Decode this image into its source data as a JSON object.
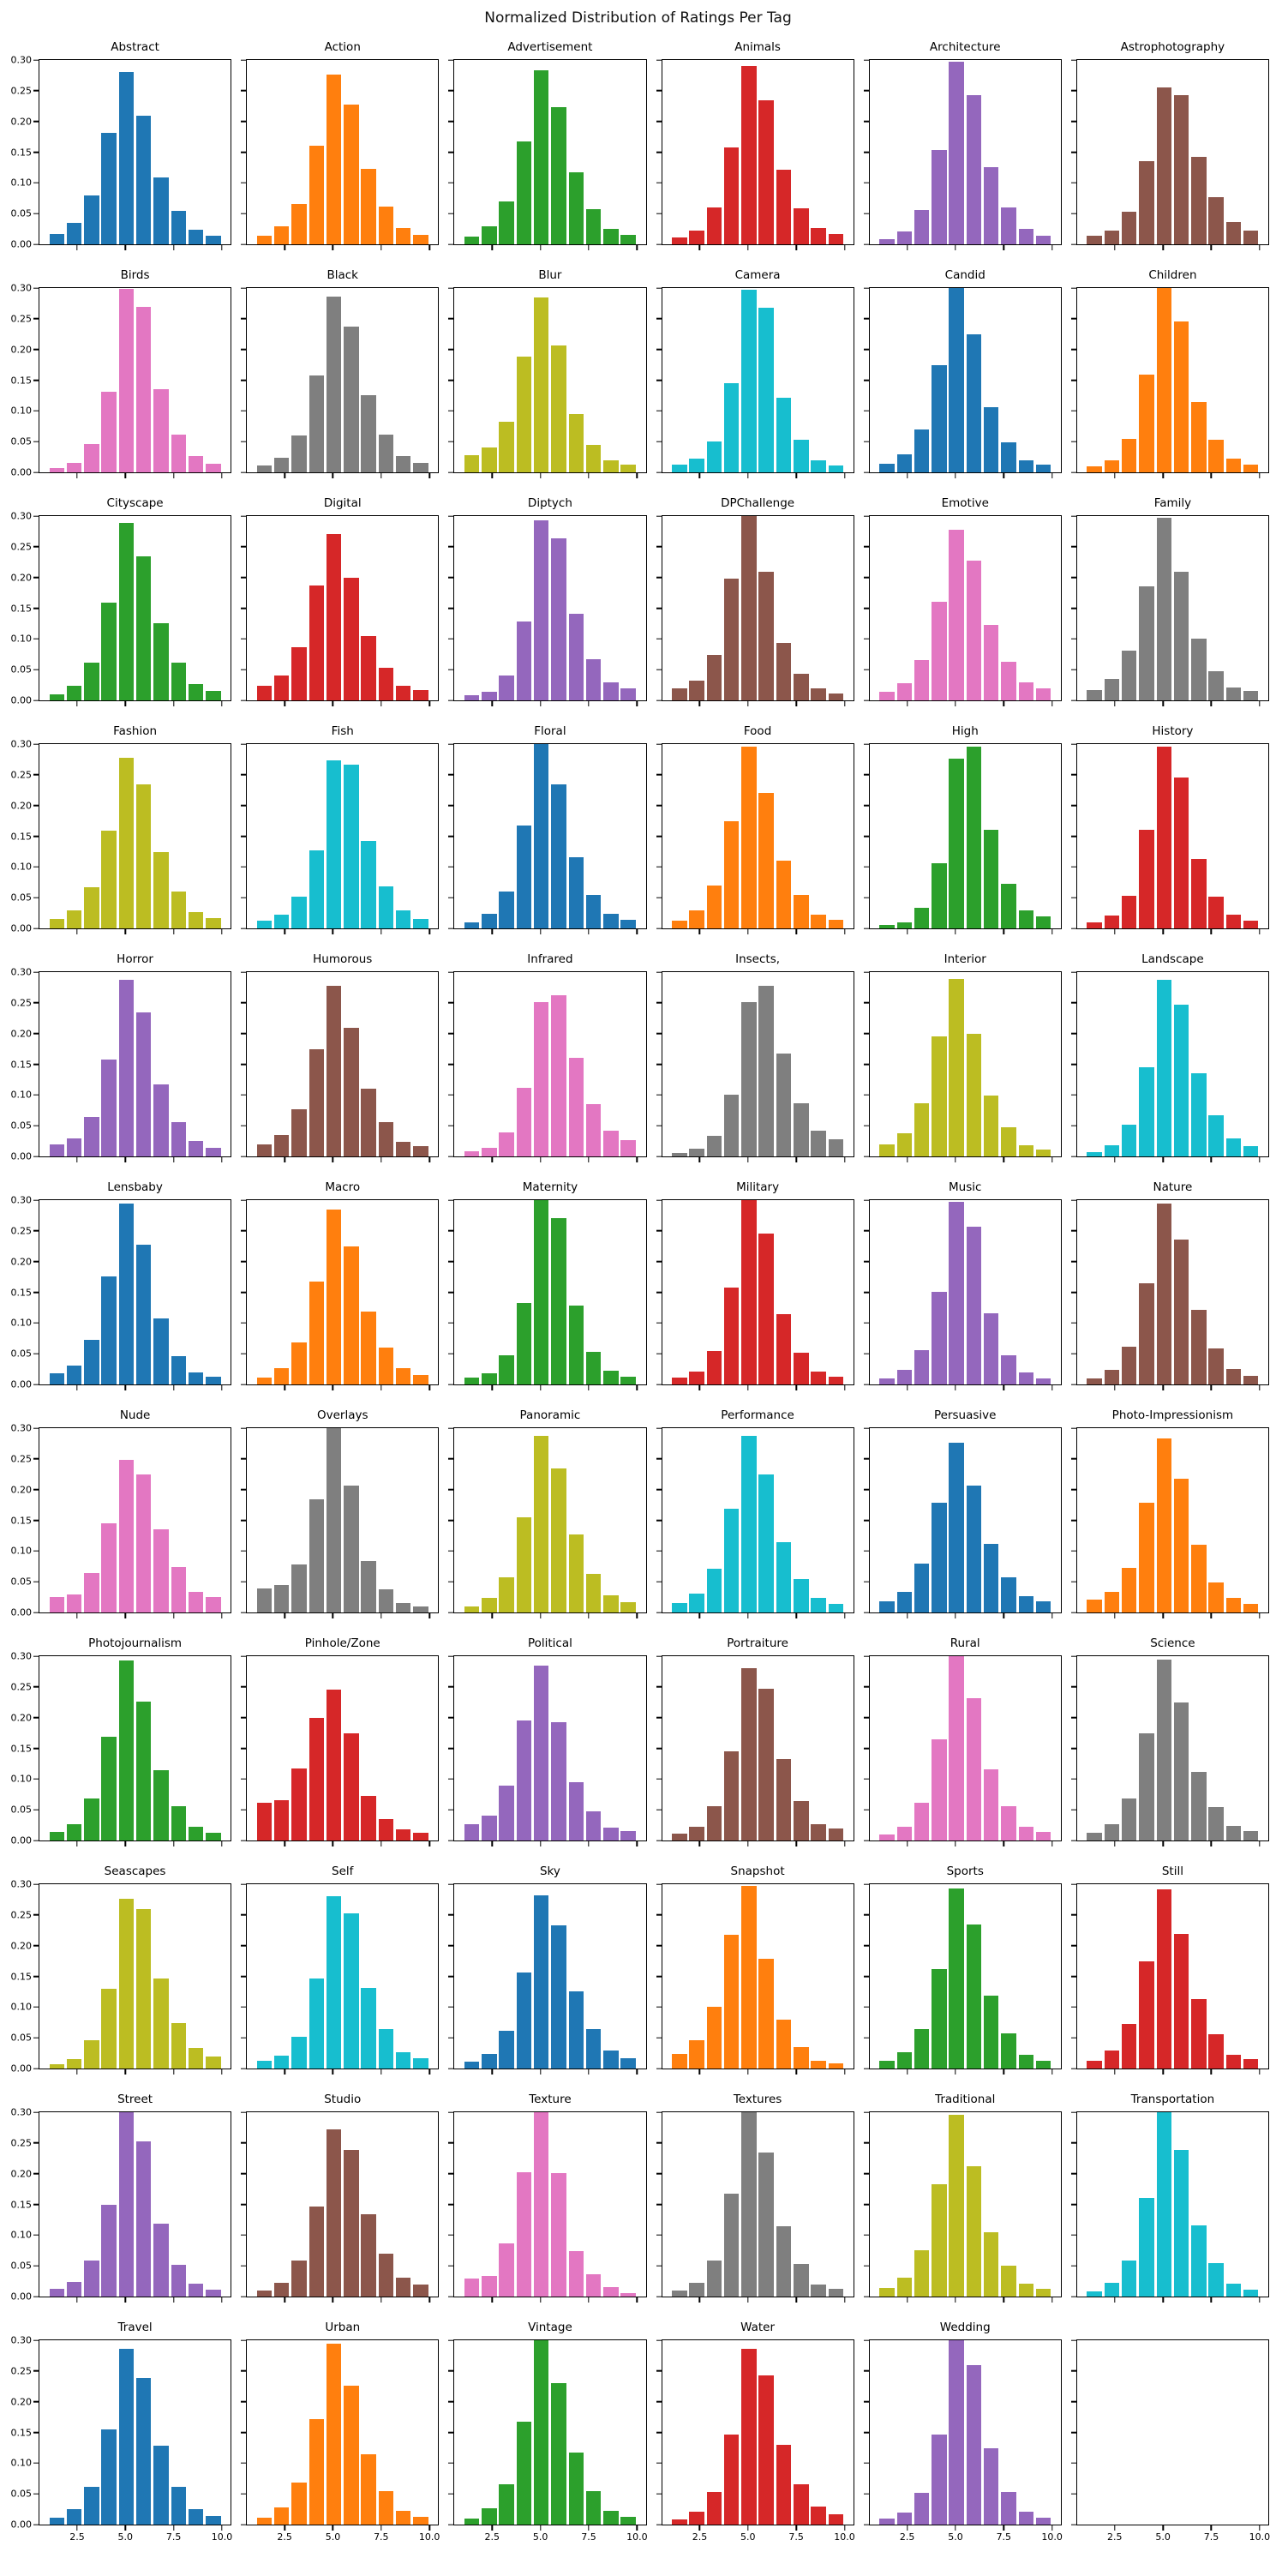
{
  "figure": {
    "title": "Normalized Distribution of Ratings Per Tag"
  },
  "chart_data": {
    "type": "bar",
    "title": "Normalized Distribution of Ratings Per Tag",
    "xlabel": "",
    "ylabel": "",
    "layout": {
      "rows": 11,
      "cols": 6,
      "ylim": [
        0,
        0.3
      ],
      "xlim": [
        0.55,
        10.45
      ],
      "bin_start": 1.0,
      "bin_width": 0.9,
      "bins": 10,
      "grid": false,
      "shared_axes": true,
      "empty_last_cell": true
    },
    "yticks": {
      "values": [
        0.0,
        0.05,
        0.1,
        0.15,
        0.2,
        0.25,
        0.3
      ],
      "labels": [
        "0.00",
        "0.05",
        "0.10",
        "0.15",
        "0.20",
        "0.25",
        "0.30"
      ]
    },
    "xticks": {
      "values": [
        2.5,
        5.0,
        7.5,
        10.0
      ],
      "labels": [
        "2.5",
        "5.0",
        "7.5",
        "10.0"
      ]
    },
    "palette": [
      "#1f77b4",
      "#ff7f0e",
      "#2ca02c",
      "#d62728",
      "#9467bd",
      "#8c564b",
      "#e377c2",
      "#7f7f7f",
      "#bcbd22",
      "#17becf"
    ],
    "subplots": [
      {
        "tag": "Abstract",
        "color": "#1f77b4",
        "values": [
          0.017,
          0.035,
          0.08,
          0.181,
          0.281,
          0.21,
          0.109,
          0.055,
          0.024,
          0.014
        ]
      },
      {
        "tag": "Action",
        "color": "#ff7f0e",
        "values": [
          0.014,
          0.029,
          0.066,
          0.161,
          0.276,
          0.228,
          0.123,
          0.062,
          0.027,
          0.016
        ]
      },
      {
        "tag": "Advertisement",
        "color": "#2ca02c",
        "values": [
          0.013,
          0.029,
          0.07,
          0.168,
          0.283,
          0.223,
          0.117,
          0.057,
          0.025,
          0.016
        ]
      },
      {
        "tag": "Animals",
        "color": "#d62728",
        "values": [
          0.011,
          0.023,
          0.06,
          0.158,
          0.29,
          0.235,
          0.122,
          0.059,
          0.026,
          0.017
        ]
      },
      {
        "tag": "Architecture",
        "color": "#9467bd",
        "values": [
          0.008,
          0.021,
          0.056,
          0.154,
          0.297,
          0.243,
          0.126,
          0.06,
          0.025,
          0.014
        ]
      },
      {
        "tag": "Astrophotography",
        "color": "#8c564b",
        "values": [
          0.014,
          0.023,
          0.053,
          0.136,
          0.256,
          0.243,
          0.143,
          0.077,
          0.036,
          0.023
        ]
      },
      {
        "tag": "Birds",
        "color": "#e377c2",
        "values": [
          0.007,
          0.016,
          0.046,
          0.131,
          0.298,
          0.27,
          0.135,
          0.061,
          0.026,
          0.014
        ]
      },
      {
        "tag": "Black",
        "color": "#7f7f7f",
        "values": [
          0.011,
          0.024,
          0.06,
          0.157,
          0.286,
          0.237,
          0.125,
          0.061,
          0.026,
          0.015
        ]
      },
      {
        "tag": "Blur",
        "color": "#bcbd22",
        "values": [
          0.028,
          0.041,
          0.082,
          0.188,
          0.285,
          0.207,
          0.095,
          0.045,
          0.02,
          0.012
        ]
      },
      {
        "tag": "Camera",
        "color": "#17becf",
        "values": [
          0.013,
          0.023,
          0.05,
          0.145,
          0.297,
          0.268,
          0.122,
          0.053,
          0.019,
          0.011
        ]
      },
      {
        "tag": "Candid",
        "color": "#1f77b4",
        "values": [
          0.014,
          0.029,
          0.07,
          0.175,
          0.3,
          0.225,
          0.106,
          0.049,
          0.019,
          0.012
        ]
      },
      {
        "tag": "Children",
        "color": "#ff7f0e",
        "values": [
          0.01,
          0.02,
          0.054,
          0.159,
          0.3,
          0.246,
          0.115,
          0.053,
          0.022,
          0.012
        ]
      },
      {
        "tag": "Cityscape",
        "color": "#2ca02c",
        "values": [
          0.01,
          0.024,
          0.062,
          0.159,
          0.289,
          0.235,
          0.125,
          0.062,
          0.027,
          0.015
        ]
      },
      {
        "tag": "Digital",
        "color": "#d62728",
        "values": [
          0.024,
          0.04,
          0.086,
          0.187,
          0.271,
          0.2,
          0.104,
          0.053,
          0.024,
          0.017
        ]
      },
      {
        "tag": "Diptych",
        "color": "#9467bd",
        "values": [
          0.008,
          0.014,
          0.04,
          0.128,
          0.293,
          0.264,
          0.141,
          0.067,
          0.029,
          0.02
        ]
      },
      {
        "tag": "DPChallenge",
        "color": "#8c564b",
        "values": [
          0.019,
          0.032,
          0.074,
          0.198,
          0.3,
          0.209,
          0.094,
          0.043,
          0.019,
          0.011
        ]
      },
      {
        "tag": "Emotive",
        "color": "#e377c2",
        "values": [
          0.014,
          0.028,
          0.066,
          0.161,
          0.278,
          0.227,
          0.123,
          0.063,
          0.03,
          0.02
        ]
      },
      {
        "tag": "Family",
        "color": "#7f7f7f",
        "values": [
          0.017,
          0.035,
          0.081,
          0.186,
          0.297,
          0.21,
          0.101,
          0.048,
          0.021,
          0.015
        ]
      },
      {
        "tag": "Fashion",
        "color": "#bcbd22",
        "values": [
          0.015,
          0.029,
          0.067,
          0.159,
          0.277,
          0.234,
          0.124,
          0.06,
          0.026,
          0.017
        ]
      },
      {
        "tag": "Fish",
        "color": "#17becf",
        "values": [
          0.013,
          0.022,
          0.052,
          0.127,
          0.273,
          0.266,
          0.143,
          0.068,
          0.029,
          0.016
        ]
      },
      {
        "tag": "Floral",
        "color": "#1f77b4",
        "values": [
          0.01,
          0.024,
          0.06,
          0.168,
          0.3,
          0.235,
          0.116,
          0.054,
          0.024,
          0.014
        ]
      },
      {
        "tag": "Food",
        "color": "#ff7f0e",
        "values": [
          0.012,
          0.029,
          0.07,
          0.175,
          0.296,
          0.221,
          0.11,
          0.054,
          0.023,
          0.014
        ]
      },
      {
        "tag": "High",
        "color": "#2ca02c",
        "values": [
          0.005,
          0.01,
          0.033,
          0.106,
          0.276,
          0.296,
          0.16,
          0.072,
          0.03,
          0.019
        ]
      },
      {
        "tag": "History",
        "color": "#d62728",
        "values": [
          0.01,
          0.021,
          0.053,
          0.16,
          0.296,
          0.246,
          0.113,
          0.051,
          0.022,
          0.013
        ]
      },
      {
        "tag": "Horror",
        "color": "#9467bd",
        "values": [
          0.02,
          0.029,
          0.064,
          0.157,
          0.288,
          0.235,
          0.117,
          0.056,
          0.025,
          0.014
        ]
      },
      {
        "tag": "Humorous",
        "color": "#8c564b",
        "values": [
          0.02,
          0.035,
          0.077,
          0.175,
          0.278,
          0.21,
          0.11,
          0.056,
          0.024,
          0.017
        ]
      },
      {
        "tag": "Infrared",
        "color": "#e377c2",
        "values": [
          0.009,
          0.014,
          0.039,
          0.112,
          0.251,
          0.263,
          0.16,
          0.085,
          0.042,
          0.027
        ]
      },
      {
        "tag": "Insects,",
        "color": "#7f7f7f",
        "values": [
          0.006,
          0.013,
          0.034,
          0.1,
          0.251,
          0.277,
          0.167,
          0.086,
          0.042,
          0.028
        ]
      },
      {
        "tag": "Interior",
        "color": "#bcbd22",
        "values": [
          0.019,
          0.038,
          0.087,
          0.196,
          0.289,
          0.2,
          0.099,
          0.048,
          0.018,
          0.011
        ]
      },
      {
        "tag": "Landscape",
        "color": "#17becf",
        "values": [
          0.007,
          0.018,
          0.052,
          0.145,
          0.288,
          0.247,
          0.135,
          0.067,
          0.029,
          0.017
        ]
      },
      {
        "tag": "Lensbaby",
        "color": "#1f77b4",
        "values": [
          0.018,
          0.031,
          0.073,
          0.176,
          0.294,
          0.228,
          0.107,
          0.046,
          0.02,
          0.013
        ]
      },
      {
        "tag": "Macro",
        "color": "#ff7f0e",
        "values": [
          0.011,
          0.026,
          0.068,
          0.168,
          0.284,
          0.225,
          0.119,
          0.06,
          0.026,
          0.015
        ]
      },
      {
        "tag": "Maternity",
        "color": "#2ca02c",
        "values": [
          0.011,
          0.018,
          0.048,
          0.133,
          0.3,
          0.271,
          0.129,
          0.053,
          0.022,
          0.012
        ]
      },
      {
        "tag": "Military",
        "color": "#d62728",
        "values": [
          0.011,
          0.021,
          0.055,
          0.158,
          0.3,
          0.245,
          0.114,
          0.051,
          0.021,
          0.012
        ]
      },
      {
        "tag": "Music",
        "color": "#9467bd",
        "values": [
          0.01,
          0.024,
          0.056,
          0.151,
          0.297,
          0.257,
          0.116,
          0.048,
          0.019,
          0.01
        ]
      },
      {
        "tag": "Nature",
        "color": "#8c564b",
        "values": [
          0.01,
          0.024,
          0.062,
          0.164,
          0.294,
          0.236,
          0.121,
          0.059,
          0.025,
          0.014
        ]
      },
      {
        "tag": "Nude",
        "color": "#e377c2",
        "values": [
          0.025,
          0.03,
          0.064,
          0.145,
          0.249,
          0.225,
          0.135,
          0.074,
          0.034,
          0.025
        ]
      },
      {
        "tag": "Overlays",
        "color": "#7f7f7f",
        "values": [
          0.039,
          0.044,
          0.078,
          0.184,
          0.3,
          0.207,
          0.084,
          0.037,
          0.016,
          0.01
        ]
      },
      {
        "tag": "Panoramic",
        "color": "#bcbd22",
        "values": [
          0.01,
          0.024,
          0.057,
          0.155,
          0.287,
          0.235,
          0.127,
          0.063,
          0.028,
          0.017
        ]
      },
      {
        "tag": "Performance",
        "color": "#17becf",
        "values": [
          0.016,
          0.031,
          0.071,
          0.169,
          0.287,
          0.225,
          0.114,
          0.054,
          0.024,
          0.014
        ]
      },
      {
        "tag": "Persuasive",
        "color": "#1f77b4",
        "values": [
          0.018,
          0.034,
          0.079,
          0.179,
          0.276,
          0.207,
          0.111,
          0.057,
          0.026,
          0.018
        ]
      },
      {
        "tag": "Photo-Impressionism",
        "color": "#ff7f0e",
        "values": [
          0.021,
          0.034,
          0.072,
          0.179,
          0.283,
          0.217,
          0.11,
          0.049,
          0.024,
          0.014
        ]
      },
      {
        "tag": "Photojournalism",
        "color": "#2ca02c",
        "values": [
          0.014,
          0.027,
          0.068,
          0.169,
          0.293,
          0.226,
          0.114,
          0.056,
          0.023,
          0.013
        ]
      },
      {
        "tag": "Pinhole/Zone",
        "color": "#d62728",
        "values": [
          0.061,
          0.065,
          0.117,
          0.2,
          0.246,
          0.174,
          0.072,
          0.035,
          0.018,
          0.013
        ]
      },
      {
        "tag": "Political",
        "color": "#9467bd",
        "values": [
          0.026,
          0.041,
          0.09,
          0.196,
          0.284,
          0.192,
          0.095,
          0.047,
          0.021,
          0.015
        ]
      },
      {
        "tag": "Portraiture",
        "color": "#8c564b",
        "values": [
          0.011,
          0.023,
          0.056,
          0.145,
          0.28,
          0.247,
          0.132,
          0.064,
          0.027,
          0.019
        ]
      },
      {
        "tag": "Rural",
        "color": "#e377c2",
        "values": [
          0.01,
          0.023,
          0.061,
          0.165,
          0.3,
          0.232,
          0.116,
          0.056,
          0.023,
          0.014
        ]
      },
      {
        "tag": "Science",
        "color": "#7f7f7f",
        "values": [
          0.012,
          0.027,
          0.068,
          0.175,
          0.294,
          0.224,
          0.112,
          0.055,
          0.024,
          0.015
        ]
      },
      {
        "tag": "Seascapes",
        "color": "#bcbd22",
        "values": [
          0.007,
          0.016,
          0.046,
          0.13,
          0.276,
          0.26,
          0.147,
          0.074,
          0.033,
          0.019
        ]
      },
      {
        "tag": "Self",
        "color": "#17becf",
        "values": [
          0.012,
          0.021,
          0.052,
          0.147,
          0.281,
          0.252,
          0.131,
          0.064,
          0.027,
          0.017
        ]
      },
      {
        "tag": "Sky",
        "color": "#1f77b4",
        "values": [
          0.011,
          0.024,
          0.061,
          0.156,
          0.282,
          0.233,
          0.126,
          0.064,
          0.029,
          0.017
        ]
      },
      {
        "tag": "Snapshot",
        "color": "#ff7f0e",
        "values": [
          0.024,
          0.046,
          0.1,
          0.218,
          0.297,
          0.178,
          0.08,
          0.035,
          0.013,
          0.009
        ]
      },
      {
        "tag": "Sports",
        "color": "#2ca02c",
        "values": [
          0.012,
          0.026,
          0.064,
          0.162,
          0.293,
          0.235,
          0.119,
          0.057,
          0.022,
          0.013
        ]
      },
      {
        "tag": "Still",
        "color": "#d62728",
        "values": [
          0.012,
          0.029,
          0.072,
          0.175,
          0.292,
          0.219,
          0.113,
          0.056,
          0.022,
          0.015
        ]
      },
      {
        "tag": "Street",
        "color": "#9467bd",
        "values": [
          0.013,
          0.024,
          0.059,
          0.15,
          0.3,
          0.253,
          0.119,
          0.052,
          0.021,
          0.011
        ]
      },
      {
        "tag": "Studio",
        "color": "#8c564b",
        "values": [
          0.01,
          0.023,
          0.058,
          0.146,
          0.272,
          0.238,
          0.134,
          0.07,
          0.031,
          0.02
        ]
      },
      {
        "tag": "Texture",
        "color": "#e377c2",
        "values": [
          0.029,
          0.034,
          0.087,
          0.202,
          0.3,
          0.201,
          0.074,
          0.036,
          0.015,
          0.005
        ]
      },
      {
        "tag": "Textures",
        "color": "#7f7f7f",
        "values": [
          0.01,
          0.022,
          0.058,
          0.168,
          0.3,
          0.235,
          0.114,
          0.053,
          0.02,
          0.012
        ]
      },
      {
        "tag": "Traditional",
        "color": "#bcbd22",
        "values": [
          0.014,
          0.031,
          0.076,
          0.183,
          0.296,
          0.212,
          0.104,
          0.05,
          0.021,
          0.013
        ]
      },
      {
        "tag": "Transportation",
        "color": "#17becf",
        "values": [
          0.008,
          0.022,
          0.059,
          0.161,
          0.3,
          0.238,
          0.116,
          0.054,
          0.021,
          0.011
        ]
      },
      {
        "tag": "Travel",
        "color": "#1f77b4",
        "values": [
          0.011,
          0.025,
          0.062,
          0.155,
          0.286,
          0.238,
          0.128,
          0.061,
          0.025,
          0.014
        ]
      },
      {
        "tag": "Urban",
        "color": "#ff7f0e",
        "values": [
          0.011,
          0.028,
          0.069,
          0.171,
          0.294,
          0.226,
          0.115,
          0.054,
          0.023,
          0.013
        ]
      },
      {
        "tag": "Vintage",
        "color": "#2ca02c",
        "values": [
          0.01,
          0.026,
          0.065,
          0.167,
          0.3,
          0.23,
          0.117,
          0.055,
          0.023,
          0.013
        ]
      },
      {
        "tag": "Water",
        "color": "#d62728",
        "values": [
          0.008,
          0.021,
          0.053,
          0.147,
          0.286,
          0.243,
          0.13,
          0.066,
          0.029,
          0.017
        ]
      },
      {
        "tag": "Wedding",
        "color": "#9467bd",
        "values": [
          0.01,
          0.02,
          0.052,
          0.147,
          0.3,
          0.259,
          0.124,
          0.053,
          0.021,
          0.011
        ]
      }
    ]
  }
}
